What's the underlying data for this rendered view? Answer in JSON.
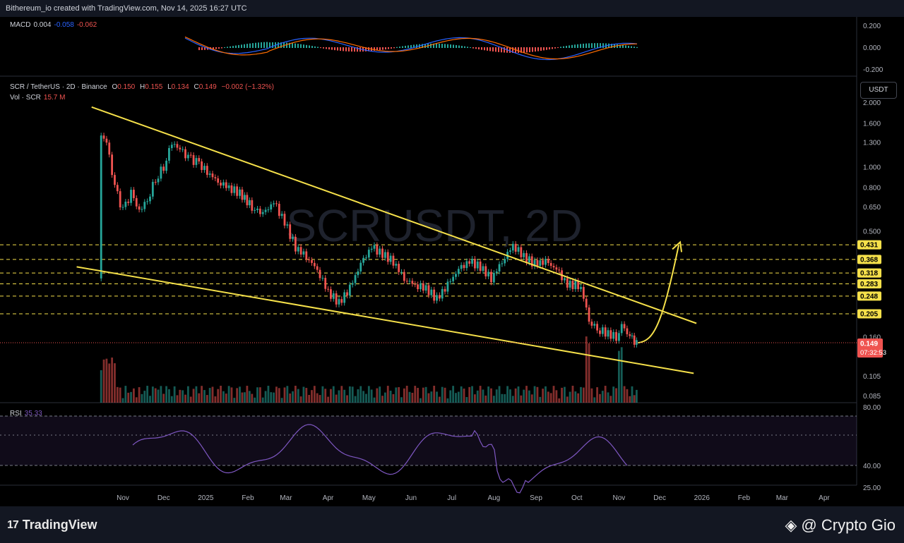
{
  "header": {
    "text": "Bithereum_io created with TradingView.com, Nov 14, 2025 16:27 UTC"
  },
  "macd": {
    "label": "MACD",
    "v1": "0.004",
    "v2": "-0.058",
    "v3": "-0.062",
    "axis": [
      "0.200",
      "0.000",
      "-0.200"
    ]
  },
  "price_legend": {
    "symbol": "SCR / TetherUS · 2D · Binance",
    "o_label": "O",
    "o": "0.150",
    "h_label": "H",
    "h": "0.155",
    "l_label": "L",
    "l": "0.134",
    "c_label": "C",
    "c": "0.149",
    "change": "−0.002 (−1.32%)"
  },
  "vol_legend": {
    "label": "Vol · SCR",
    "value": "15.7 M"
  },
  "rsi": {
    "label": "RSI",
    "value": "35.33",
    "axis": [
      "80.00",
      "40.00",
      "25.00"
    ]
  },
  "currency_button": "USDT",
  "watermark": "SCRUSDT, 2D",
  "price_tags": {
    "last": "0.149",
    "countdown": "07:32:53"
  },
  "colors": {
    "up": "#26a69a",
    "down": "#ef5350",
    "trendline": "#f5e04a",
    "level": "#f5e04a",
    "rsi": "#7e57c2",
    "macd": "#2962ff",
    "signal": "#ff6d00"
  },
  "chart_data": {
    "type": "candlestick",
    "x_axis_labels": [
      "Nov",
      "Dec",
      "2025",
      "Feb",
      "Mar",
      "Apr",
      "May",
      "Jun",
      "Jul",
      "Aug",
      "Sep",
      "Oct",
      "Nov",
      "Dec",
      "2026",
      "Feb",
      "Mar",
      "Apr"
    ],
    "y_axis": {
      "scale": "log",
      "labels": [
        "2.000",
        "1.600",
        "1.300",
        "1.000",
        "0.800",
        "0.650",
        "0.500",
        "0.160",
        "0.105",
        "0.085"
      ]
    },
    "close_series": [
      {
        "date": "2024-10-14",
        "close": 1.45
      },
      {
        "date": "2024-10-20",
        "close": 1.3
      },
      {
        "date": "2024-10-26",
        "close": 0.8
      },
      {
        "date": "2024-11-01",
        "close": 0.62
      },
      {
        "date": "2024-11-07",
        "close": 0.75
      },
      {
        "date": "2024-11-13",
        "close": 0.62
      },
      {
        "date": "2024-11-19",
        "close": 0.7
      },
      {
        "date": "2024-11-25",
        "close": 0.88
      },
      {
        "date": "2024-12-01",
        "close": 1.0
      },
      {
        "date": "2024-12-07",
        "close": 1.3
      },
      {
        "date": "2024-12-13",
        "close": 1.2
      },
      {
        "date": "2024-12-19",
        "close": 1.1
      },
      {
        "date": "2024-12-25",
        "close": 1.05
      },
      {
        "date": "2025-01-02",
        "close": 0.95
      },
      {
        "date": "2025-01-10",
        "close": 0.85
      },
      {
        "date": "2025-01-18",
        "close": 0.8
      },
      {
        "date": "2025-01-26",
        "close": 0.75
      },
      {
        "date": "2025-02-04",
        "close": 0.65
      },
      {
        "date": "2025-02-12",
        "close": 0.6
      },
      {
        "date": "2025-02-20",
        "close": 0.68
      },
      {
        "date": "2025-02-28",
        "close": 0.55
      },
      {
        "date": "2025-03-08",
        "close": 0.42
      },
      {
        "date": "2025-03-16",
        "close": 0.38
      },
      {
        "date": "2025-03-24",
        "close": 0.33
      },
      {
        "date": "2025-04-01",
        "close": 0.26
      },
      {
        "date": "2025-04-09",
        "close": 0.23
      },
      {
        "date": "2025-04-17",
        "close": 0.27
      },
      {
        "date": "2025-04-25",
        "close": 0.35
      },
      {
        "date": "2025-05-03",
        "close": 0.42
      },
      {
        "date": "2025-05-11",
        "close": 0.39
      },
      {
        "date": "2025-05-19",
        "close": 0.36
      },
      {
        "date": "2025-05-27",
        "close": 0.3
      },
      {
        "date": "2025-06-04",
        "close": 0.28
      },
      {
        "date": "2025-06-12",
        "close": 0.27
      },
      {
        "date": "2025-06-20",
        "close": 0.24
      },
      {
        "date": "2025-06-28",
        "close": 0.28
      },
      {
        "date": "2025-07-06",
        "close": 0.33
      },
      {
        "date": "2025-07-14",
        "close": 0.36
      },
      {
        "date": "2025-07-22",
        "close": 0.34
      },
      {
        "date": "2025-07-30",
        "close": 0.3
      },
      {
        "date": "2025-08-07",
        "close": 0.36
      },
      {
        "date": "2025-08-15",
        "close": 0.43
      },
      {
        "date": "2025-08-23",
        "close": 0.38
      },
      {
        "date": "2025-08-31",
        "close": 0.35
      },
      {
        "date": "2025-09-08",
        "close": 0.36
      },
      {
        "date": "2025-09-16",
        "close": 0.33
      },
      {
        "date": "2025-09-24",
        "close": 0.28
      },
      {
        "date": "2025-10-02",
        "close": 0.28
      },
      {
        "date": "2025-10-06",
        "close": 0.25
      },
      {
        "date": "2025-10-10",
        "close": 0.19
      },
      {
        "date": "2025-10-16",
        "close": 0.175
      },
      {
        "date": "2025-10-24",
        "close": 0.165
      },
      {
        "date": "2025-10-30",
        "close": 0.16
      },
      {
        "date": "2025-11-03",
        "close": 0.18
      },
      {
        "date": "2025-11-09",
        "close": 0.16
      },
      {
        "date": "2025-11-14",
        "close": 0.149
      }
    ],
    "horizontal_levels": [
      "0.431",
      "0.368",
      "0.318",
      "0.283",
      "0.248",
      "0.205"
    ],
    "trendlines": [
      {
        "name": "upper",
        "points": [
          {
            "date": "2024-10-09",
            "price": 1.9
          },
          {
            "date": "2025-12-28",
            "price": 0.185
          }
        ]
      },
      {
        "name": "lower",
        "points": [
          {
            "date": "2024-09-28",
            "price": 0.34
          },
          {
            "date": "2025-12-26",
            "price": 0.108
          }
        ]
      }
    ],
    "projection": {
      "points": [
        {
          "date": "2025-11-15",
          "price": 0.15
        },
        {
          "date": "2025-11-27",
          "price": 0.16
        },
        {
          "date": "2025-12-07",
          "price": 0.25
        },
        {
          "date": "2025-12-15",
          "price": 0.43
        }
      ]
    }
  }
}
